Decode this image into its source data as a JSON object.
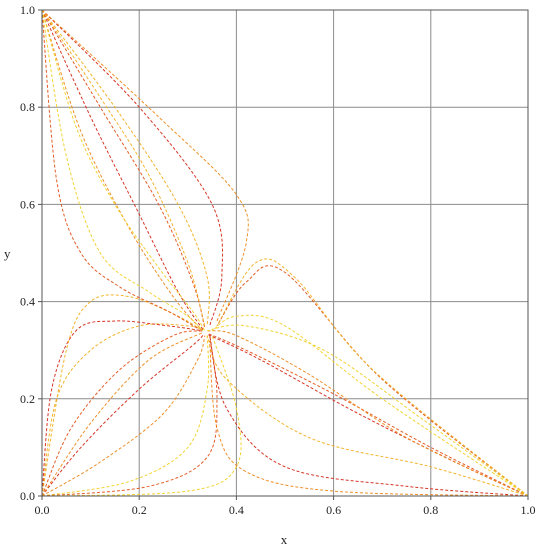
{
  "chart_data": {
    "type": "line",
    "title": "",
    "xlabel": "x",
    "ylabel": "y",
    "xlim": [
      0.0,
      1.0
    ],
    "ylim": [
      0.0,
      1.0
    ],
    "grid": true,
    "legend": "none",
    "line_style": "dashed",
    "xticks": [
      {
        "value": 0.0,
        "label": "0.0"
      },
      {
        "value": 0.2,
        "label": "0.2"
      },
      {
        "value": 0.4,
        "label": "0.4"
      },
      {
        "value": 0.6,
        "label": "0.6"
      },
      {
        "value": 0.8,
        "label": "0.8"
      },
      {
        "value": 1.0,
        "label": "1.0"
      }
    ],
    "yticks": [
      {
        "value": 0.0,
        "label": "0.0"
      },
      {
        "value": 0.2,
        "label": "0.2"
      },
      {
        "value": 0.4,
        "label": "0.4"
      },
      {
        "value": 0.6,
        "label": "0.6"
      },
      {
        "value": 0.8,
        "label": "0.8"
      },
      {
        "value": 1.0,
        "label": "1.0"
      }
    ],
    "colors": [
      "#d42a1a",
      "#e2541a",
      "#ee8a1e",
      "#f2b024",
      "#f0d22a"
    ],
    "grid_color": "#8c8c8c",
    "attractor": [
      0.333,
      0.333
    ],
    "series": [
      {
        "x": [
          0.0,
          0.08,
          0.2,
          0.31,
          0.333
        ],
        "y": [
          0.0,
          0.1,
          0.22,
          0.31,
          0.333
        ]
      },
      {
        "x": [
          0.0,
          0.06,
          0.16,
          0.27,
          0.33
        ],
        "y": [
          0.0,
          0.14,
          0.26,
          0.33,
          0.34
        ]
      },
      {
        "x": [
          0.0,
          0.12,
          0.25,
          0.32,
          0.335
        ],
        "y": [
          0.0,
          0.07,
          0.17,
          0.28,
          0.33
        ]
      },
      {
        "x": [
          0.0,
          0.03,
          0.1,
          0.2,
          0.3,
          0.335
        ],
        "y": [
          0.0,
          0.2,
          0.3,
          0.35,
          0.35,
          0.34
        ]
      },
      {
        "x": [
          0.0,
          0.18,
          0.3,
          0.34,
          0.34
        ],
        "y": [
          0.0,
          0.03,
          0.1,
          0.22,
          0.33
        ]
      },
      {
        "x": [
          0.0,
          0.02,
          0.07,
          0.15,
          0.26,
          0.33
        ],
        "y": [
          0.0,
          0.22,
          0.34,
          0.36,
          0.35,
          0.34
        ]
      },
      {
        "x": [
          0.0,
          0.22,
          0.34,
          0.36,
          0.345
        ],
        "y": [
          0.0,
          0.02,
          0.08,
          0.2,
          0.33
        ]
      },
      {
        "x": [
          0.0,
          0.1,
          0.22,
          0.33
        ],
        "y": [
          0.0,
          0.15,
          0.28,
          0.336
        ]
      },
      {
        "x": [
          0.0,
          0.05,
          0.1,
          0.18,
          0.28,
          0.33
        ],
        "y": [
          0.0,
          0.3,
          0.4,
          0.41,
          0.37,
          0.34
        ]
      },
      {
        "x": [
          0.0,
          0.3,
          0.4,
          0.4,
          0.35
        ],
        "y": [
          0.0,
          0.01,
          0.06,
          0.18,
          0.33
        ]
      },
      {
        "x": [
          1.0,
          0.85,
          0.65,
          0.45,
          0.34
        ],
        "y": [
          0.0,
          0.07,
          0.17,
          0.28,
          0.333
        ]
      },
      {
        "x": [
          1.0,
          0.8,
          0.6,
          0.42,
          0.34
        ],
        "y": [
          0.0,
          0.1,
          0.21,
          0.3,
          0.335
        ]
      },
      {
        "x": [
          1.0,
          0.75,
          0.55,
          0.4,
          0.34
        ],
        "y": [
          0.0,
          0.12,
          0.25,
          0.33,
          0.34
        ]
      },
      {
        "x": [
          1.0,
          0.8,
          0.55,
          0.38,
          0.34
        ],
        "y": [
          0.0,
          0.06,
          0.12,
          0.24,
          0.33
        ]
      },
      {
        "x": [
          1.0,
          0.7,
          0.5,
          0.4,
          0.35
        ],
        "y": [
          0.0,
          0.2,
          0.35,
          0.37,
          0.34
        ]
      },
      {
        "x": [
          1.0,
          0.75,
          0.5,
          0.38,
          0.345
        ],
        "y": [
          0.0,
          0.02,
          0.06,
          0.18,
          0.33
        ]
      },
      {
        "x": [
          1.0,
          0.7,
          0.5,
          0.42,
          0.36
        ],
        "y": [
          0.0,
          0.24,
          0.46,
          0.44,
          0.35
        ]
      },
      {
        "x": [
          1.0,
          0.6,
          0.42,
          0.36,
          0.345
        ],
        "y": [
          0.0,
          0.01,
          0.05,
          0.14,
          0.32
        ]
      },
      {
        "x": [
          1.0,
          0.68,
          0.52,
          0.44,
          0.36
        ],
        "y": [
          0.0,
          0.26,
          0.45,
          0.48,
          0.35
        ]
      },
      {
        "x": [
          1.0,
          0.78,
          0.58,
          0.42,
          0.34
        ],
        "y": [
          0.0,
          0.16,
          0.3,
          0.35,
          0.34
        ]
      },
      {
        "x": [
          0.0,
          0.1,
          0.2,
          0.28,
          0.333
        ],
        "y": [
          1.0,
          0.78,
          0.58,
          0.42,
          0.34
        ]
      },
      {
        "x": [
          0.0,
          0.12,
          0.24,
          0.31,
          0.335
        ],
        "y": [
          1.0,
          0.8,
          0.6,
          0.44,
          0.345
        ]
      },
      {
        "x": [
          0.0,
          0.08,
          0.18,
          0.27,
          0.33
        ],
        "y": [
          1.0,
          0.75,
          0.55,
          0.41,
          0.34
        ]
      },
      {
        "x": [
          0.0,
          0.15,
          0.28,
          0.34,
          0.34
        ],
        "y": [
          1.0,
          0.8,
          0.6,
          0.45,
          0.35
        ]
      },
      {
        "x": [
          0.0,
          0.05,
          0.12,
          0.22,
          0.3,
          0.33
        ],
        "y": [
          1.0,
          0.7,
          0.5,
          0.42,
          0.37,
          0.34
        ]
      },
      {
        "x": [
          0.0,
          0.2,
          0.35,
          0.37,
          0.345
        ],
        "y": [
          1.0,
          0.8,
          0.6,
          0.45,
          0.35
        ]
      },
      {
        "x": [
          0.0,
          0.03,
          0.08,
          0.16,
          0.26,
          0.32
        ],
        "y": [
          1.0,
          0.65,
          0.5,
          0.43,
          0.38,
          0.345
        ]
      },
      {
        "x": [
          0.0,
          0.24,
          0.4,
          0.42,
          0.36
        ],
        "y": [
          1.0,
          0.78,
          0.62,
          0.52,
          0.36
        ]
      },
      {
        "x": [
          0.0,
          0.12,
          0.22,
          0.3,
          0.335
        ],
        "y": [
          1.0,
          0.82,
          0.66,
          0.48,
          0.35
        ]
      },
      {
        "x": [
          0.0,
          0.07,
          0.15,
          0.24,
          0.31,
          0.335
        ],
        "y": [
          1.0,
          0.76,
          0.6,
          0.47,
          0.38,
          0.34
        ]
      }
    ]
  }
}
